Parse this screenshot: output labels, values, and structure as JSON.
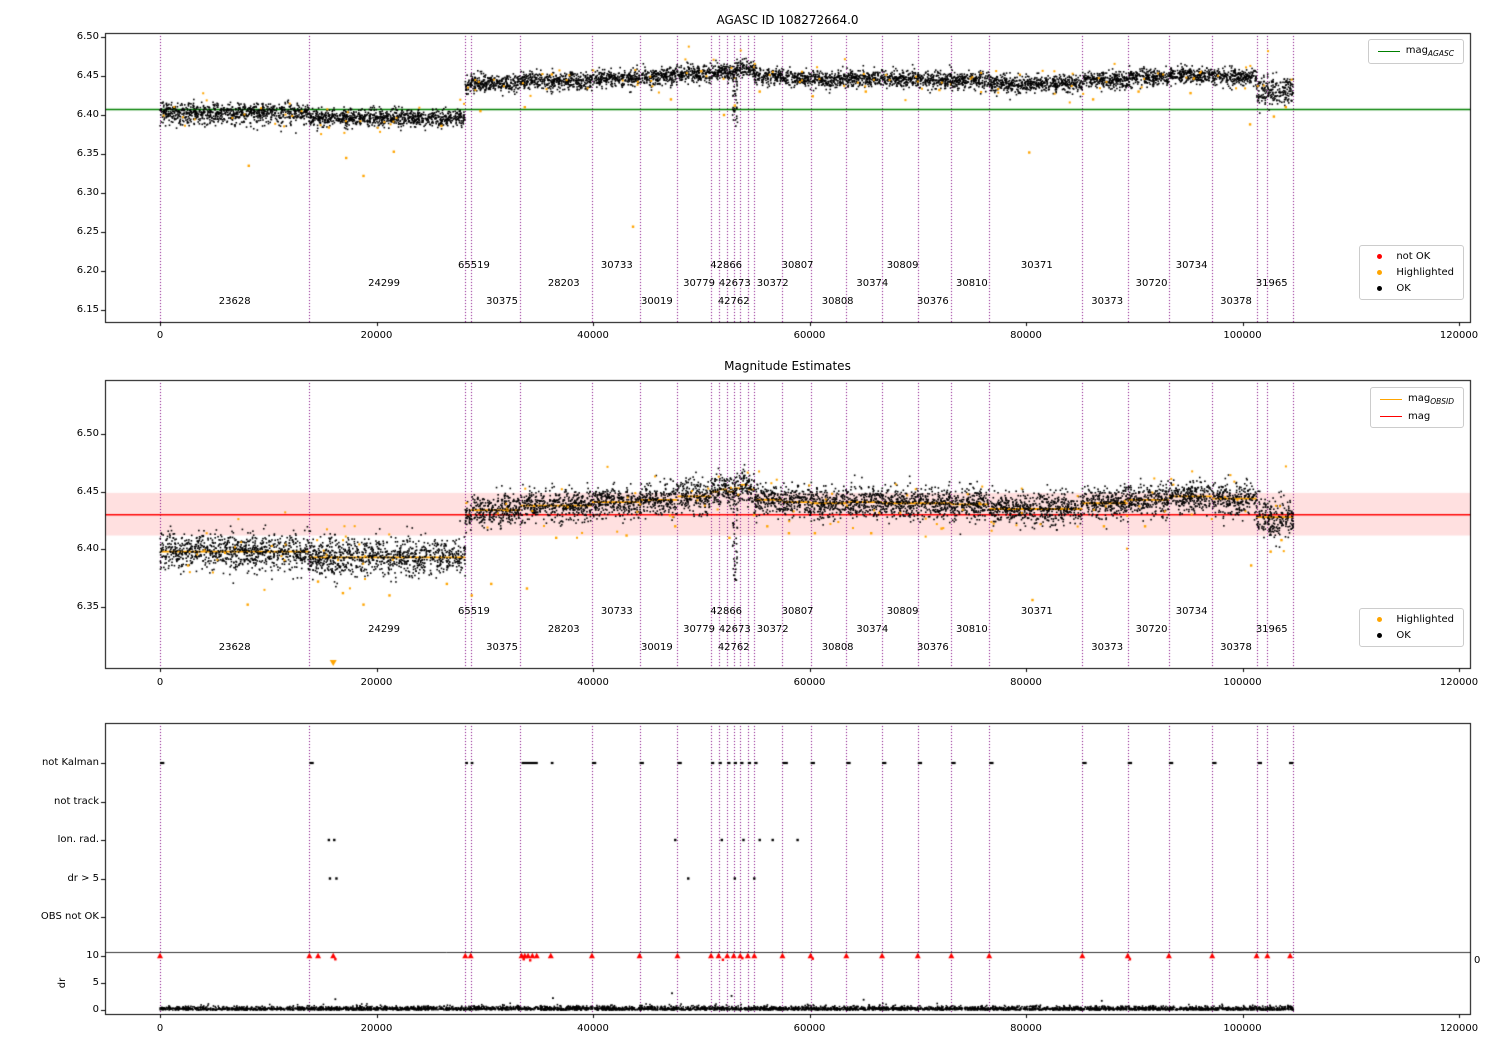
{
  "colors": {
    "ok": "#000000",
    "highlighted": "#ffa500",
    "not_ok": "#ff0000",
    "boundary": "#800080",
    "agasc_line": "#008000",
    "mag_line": "#ff0000",
    "band": "rgba(255,0,0,0.12)",
    "spine": "#000000"
  },
  "chart_data": [
    {
      "type": "scatter",
      "title": "AGASC ID 108272664.0",
      "xlabel": "",
      "ylabel": "",
      "xlim": [
        -5080,
        121016
      ],
      "ylim": [
        6.135,
        6.505
      ],
      "grid": false,
      "legend_position": "right",
      "xticks": {
        "values": [
          0,
          20000,
          40000,
          60000,
          80000,
          100000,
          120000
        ],
        "labels": [
          "0",
          "20000",
          "40000",
          "60000",
          "80000",
          "100000",
          "120000"
        ]
      },
      "yticks": {
        "values": [
          6.5,
          6.45,
          6.4,
          6.35,
          6.3,
          6.25,
          6.2,
          6.15
        ],
        "labels": [
          "6.50",
          "6.45",
          "6.40",
          "6.35",
          "6.30",
          "6.25",
          "6.20",
          "6.15"
        ]
      },
      "ref_line": {
        "label": "mag_AGASC",
        "value": 6.407,
        "color": "#008000"
      },
      "legend_line": [
        {
          "main": "mag",
          "sub": "AGASC",
          "color": "#008000"
        }
      ],
      "legend_markers": [
        {
          "label": "not OK",
          "color": "#ff0000"
        },
        {
          "label": "Highlighted",
          "color": "#ffa500"
        },
        {
          "label": "OK",
          "color": "#000000"
        }
      ],
      "segments_fields": [
        "obsid",
        "x0",
        "x1",
        "mag",
        "label_x",
        "label_row",
        "sd"
      ],
      "segments": [
        [
          "23628",
          0,
          13800,
          6.404,
          6900,
          2
        ],
        [
          "24299",
          13800,
          28200,
          6.396,
          20700,
          1
        ],
        [
          "65519",
          28200,
          28700,
          6.438,
          29000,
          0
        ],
        [
          "30375",
          28700,
          33300,
          6.441,
          31600,
          2
        ],
        [
          "28203",
          33300,
          39900,
          6.444,
          37300,
          1
        ],
        [
          "30733",
          39900,
          44300,
          6.447,
          42200,
          0
        ],
        [
          "30019",
          44300,
          47800,
          6.449,
          45900,
          2
        ],
        [
          "30779",
          47800,
          50900,
          6.452,
          49800,
          1
        ],
        [
          "42866",
          50900,
          51600,
          6.455,
          52300,
          0
        ],
        [
          "42673",
          51600,
          52400,
          6.457,
          53100,
          1
        ],
        [
          "42762",
          52400,
          53000,
          6.455,
          53000,
          2
        ],
        [
          "",
          53000,
          53600,
          6.458,
          0,
          -1
        ],
        [
          "",
          53600,
          54300,
          6.46,
          0,
          -1
        ],
        [
          "",
          54300,
          54900,
          6.458,
          0,
          -1
        ],
        [
          "30372",
          54900,
          57500,
          6.45,
          56600,
          1
        ],
        [
          "30807",
          57500,
          60100,
          6.447,
          58900,
          0
        ],
        [
          "30808",
          60100,
          63400,
          6.446,
          62600,
          2
        ],
        [
          "30374",
          63400,
          66700,
          6.447,
          65800,
          1
        ],
        [
          "30809",
          66700,
          70000,
          6.446,
          68600,
          0
        ],
        [
          "30376",
          70000,
          73100,
          6.445,
          71400,
          2
        ],
        [
          "30810",
          73100,
          76600,
          6.444,
          75000,
          1
        ],
        [
          "30371",
          76600,
          85200,
          6.44,
          81000,
          0
        ],
        [
          "30373",
          85200,
          89400,
          6.445,
          87500,
          2
        ],
        [
          "30720",
          89400,
          93200,
          6.448,
          91600,
          1
        ],
        [
          "30734",
          93200,
          97200,
          6.451,
          95300,
          0
        ],
        [
          "30378",
          97200,
          101300,
          6.449,
          99400,
          2
        ],
        [
          "31965",
          101300,
          104700,
          6.432,
          102700,
          1,
          0.009
        ]
      ],
      "extra_boundaries": [
        102300
      ],
      "highlighted_points": [
        [
          8200,
          6.335
        ],
        [
          15600,
          6.384
        ],
        [
          17200,
          6.345
        ],
        [
          18800,
          6.322
        ],
        [
          21600,
          6.353
        ],
        [
          26000,
          6.386
        ],
        [
          29600,
          6.405
        ],
        [
          33700,
          6.41
        ],
        [
          36200,
          6.452
        ],
        [
          43700,
          6.257
        ],
        [
          47200,
          6.42
        ],
        [
          50000,
          6.456
        ],
        [
          52100,
          6.4
        ],
        [
          53100,
          6.412
        ],
        [
          55400,
          6.43
        ],
        [
          60300,
          6.424
        ],
        [
          65200,
          6.43
        ],
        [
          72000,
          6.432
        ],
        [
          80300,
          6.352
        ],
        [
          86200,
          6.42
        ],
        [
          90400,
          6.43
        ],
        [
          95200,
          6.428
        ],
        [
          100700,
          6.388
        ],
        [
          102900,
          6.398
        ],
        [
          104000,
          6.41
        ]
      ],
      "dip": {
        "x0": 52900,
        "x1": 53350,
        "ymin": 6.385,
        "ymax": 6.45,
        "n": 40
      }
    },
    {
      "type": "scatter",
      "title": "Magnitude Estimates",
      "xlabel": "",
      "ylabel": "",
      "xlim": [
        -5080,
        121016
      ],
      "ylim": [
        6.297,
        6.547
      ],
      "grid": false,
      "legend_position": "right",
      "xticks": {
        "values": [
          0,
          20000,
          40000,
          60000,
          80000,
          100000,
          120000
        ],
        "labels": [
          "0",
          "20000",
          "40000",
          "60000",
          "80000",
          "100000",
          "120000"
        ]
      },
      "yticks": {
        "values": [
          6.5,
          6.45,
          6.4,
          6.35
        ],
        "labels": [
          "6.50",
          "6.45",
          "6.40",
          "6.35"
        ]
      },
      "ref_line": {
        "label": "mag",
        "value": 6.43,
        "color": "#ff0000"
      },
      "band": [
        6.412,
        6.449
      ],
      "step_line_label": "mag_OBSID",
      "legend_lines": [
        {
          "main": "mag",
          "sub": "OBSID",
          "color": "#ffa500"
        },
        {
          "main": "mag",
          "sub": "",
          "color": "#ff0000"
        }
      ],
      "legend_markers": [
        {
          "label": "Highlighted",
          "color": "#ffa500"
        },
        {
          "label": "OK",
          "color": "#000000"
        }
      ],
      "segments_fields": [
        "obsid",
        "x0",
        "x1",
        "mag",
        "label_x",
        "label_row",
        "sd"
      ],
      "segments": [
        [
          "23628",
          0,
          13800,
          6.398,
          6900,
          2,
          0.008
        ],
        [
          "24299",
          13800,
          28200,
          6.393,
          20700,
          1,
          0.008
        ],
        [
          "65519",
          28200,
          28700,
          6.43,
          29000,
          0
        ],
        [
          "30375",
          28700,
          33300,
          6.434,
          31600,
          2
        ],
        [
          "28203",
          33300,
          39900,
          6.438,
          37300,
          1
        ],
        [
          "30733",
          39900,
          44300,
          6.441,
          42200,
          0
        ],
        [
          "30019",
          44300,
          47800,
          6.443,
          45900,
          2
        ],
        [
          "30779",
          47800,
          50900,
          6.446,
          49800,
          1
        ],
        [
          "42866",
          50900,
          51600,
          6.45,
          52300,
          0
        ],
        [
          "42673",
          51600,
          52400,
          6.452,
          53100,
          1
        ],
        [
          "42762",
          52400,
          53000,
          6.45,
          53000,
          2
        ],
        [
          "",
          53000,
          53600,
          6.453,
          0,
          -1
        ],
        [
          "",
          53600,
          54300,
          6.456,
          0,
          -1
        ],
        [
          "",
          54300,
          54900,
          6.452,
          0,
          -1
        ],
        [
          "30372",
          54900,
          57500,
          6.443,
          56600,
          1
        ],
        [
          "30807",
          57500,
          60100,
          6.441,
          58900,
          0
        ],
        [
          "30808",
          60100,
          63400,
          6.44,
          62600,
          2
        ],
        [
          "30374",
          63400,
          66700,
          6.441,
          65800,
          1
        ],
        [
          "30809",
          66700,
          70000,
          6.44,
          68600,
          0
        ],
        [
          "30376",
          70000,
          73100,
          6.44,
          71400,
          2
        ],
        [
          "30810",
          73100,
          76600,
          6.439,
          75000,
          1
        ],
        [
          "30371",
          76600,
          85200,
          6.435,
          81000,
          0
        ],
        [
          "30373",
          85200,
          89400,
          6.44,
          87500,
          2
        ],
        [
          "30720",
          89400,
          93200,
          6.443,
          91600,
          1
        ],
        [
          "30734",
          93200,
          97200,
          6.446,
          95300,
          0
        ],
        [
          "30378",
          97200,
          101300,
          6.444,
          99400,
          2
        ],
        [
          "31965",
          101300,
          104700,
          6.428,
          102700,
          1,
          0.009
        ]
      ],
      "extra_boundaries": [
        102300
      ],
      "highlighted_points": [
        [
          2600,
          6.386
        ],
        [
          8100,
          6.352
        ],
        [
          14600,
          6.372
        ],
        [
          16900,
          6.362
        ],
        [
          18800,
          6.352
        ],
        [
          21200,
          6.36
        ],
        [
          26500,
          6.37
        ],
        [
          28800,
          6.36
        ],
        [
          30600,
          6.37
        ],
        [
          33900,
          6.366
        ],
        [
          36600,
          6.41
        ],
        [
          43100,
          6.412
        ],
        [
          47600,
          6.42
        ],
        [
          52600,
          6.41
        ],
        [
          56100,
          6.42
        ],
        [
          58100,
          6.414
        ],
        [
          60500,
          6.414
        ],
        [
          65700,
          6.414
        ],
        [
          72200,
          6.418
        ],
        [
          80600,
          6.356
        ],
        [
          87200,
          6.42
        ],
        [
          91000,
          6.42
        ],
        [
          100800,
          6.386
        ],
        [
          102600,
          6.398
        ],
        [
          103600,
          6.408
        ]
      ],
      "clipped_bottom_markers": [
        16000
      ],
      "dip": {
        "x0": 52900,
        "x1": 53350,
        "ymin": 6.37,
        "ymax": 6.44,
        "n": 40
      }
    },
    {
      "type": "scatter",
      "title": "",
      "categories": [
        "not Kalman",
        "not track",
        "Ion. rad.",
        "dr > 5",
        "OBS not OK"
      ],
      "dr_label": "dr",
      "dr_ticks": {
        "values": [
          0,
          5,
          10
        ],
        "labels": [
          "0",
          "5",
          "10"
        ]
      },
      "right_tick_label": "0",
      "dr_clip_value": 10,
      "xticks": {
        "values": [
          0,
          20000,
          40000,
          60000,
          80000,
          100000,
          120000
        ],
        "labels": [
          "0",
          "20000",
          "40000",
          "60000",
          "80000",
          "100000",
          "120000"
        ]
      },
      "not_kalman_dashes": [
        [
          0,
          400
        ],
        [
          13800,
          400
        ],
        [
          28200,
          250
        ],
        [
          28700,
          250
        ],
        [
          33400,
          1500
        ],
        [
          36100,
          250
        ],
        [
          39900,
          400
        ],
        [
          44300,
          400
        ],
        [
          47800,
          400
        ],
        [
          50900,
          300
        ],
        [
          51600,
          300
        ],
        [
          52400,
          300
        ],
        [
          53000,
          300
        ],
        [
          53600,
          300
        ],
        [
          54300,
          300
        ],
        [
          54900,
          300
        ],
        [
          57500,
          500
        ],
        [
          60100,
          400
        ],
        [
          63400,
          400
        ],
        [
          66700,
          400
        ],
        [
          70000,
          400
        ],
        [
          73100,
          400
        ],
        [
          76600,
          400
        ],
        [
          85200,
          400
        ],
        [
          89400,
          400
        ],
        [
          93200,
          400
        ],
        [
          97200,
          400
        ],
        [
          101400,
          400
        ],
        [
          104300,
          400
        ]
      ],
      "not_track_points": [],
      "ion_rad_points": [
        15600,
        16100,
        47600,
        51900,
        53900,
        55400,
        56600,
        58900
      ],
      "dr_gt5_points": [
        15700,
        16300,
        48800,
        53100,
        54900
      ],
      "obs_not_ok_points": [],
      "dr_red_clipped_x": [
        0,
        13800,
        14600,
        16000,
        28200,
        28700,
        33400,
        33700,
        34000,
        34400,
        34800,
        36100,
        39900,
        44300,
        47800,
        50900,
        51600,
        52400,
        53000,
        53600,
        54300,
        54900,
        57500,
        60100,
        63400,
        66700,
        70000,
        73100,
        76600,
        85200,
        89400,
        93200,
        97200,
        101300,
        102300,
        104400
      ],
      "dr_red_points": [
        [
          16200,
          9.4
        ],
        [
          33600,
          9.4
        ],
        [
          34200,
          9.2
        ],
        [
          52000,
          9.3
        ],
        [
          53800,
          9.6
        ],
        [
          60300,
          9.5
        ],
        [
          89600,
          9.4
        ]
      ],
      "dr_black_outliers": [
        [
          16200,
          2.0
        ],
        [
          36300,
          2.2
        ],
        [
          47300,
          3.1
        ],
        [
          52800,
          2.6
        ],
        [
          65000,
          1.9
        ],
        [
          87000,
          1.7
        ]
      ]
    }
  ]
}
